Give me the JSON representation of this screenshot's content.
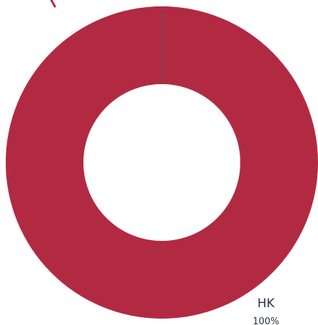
{
  "chart_data": {
    "type": "pie",
    "donut": true,
    "slices": [
      {
        "label": "HK",
        "value": 100,
        "percent_label": "100%",
        "color": "#b22a42"
      }
    ],
    "accent_line_color": "#5b4a6e"
  }
}
